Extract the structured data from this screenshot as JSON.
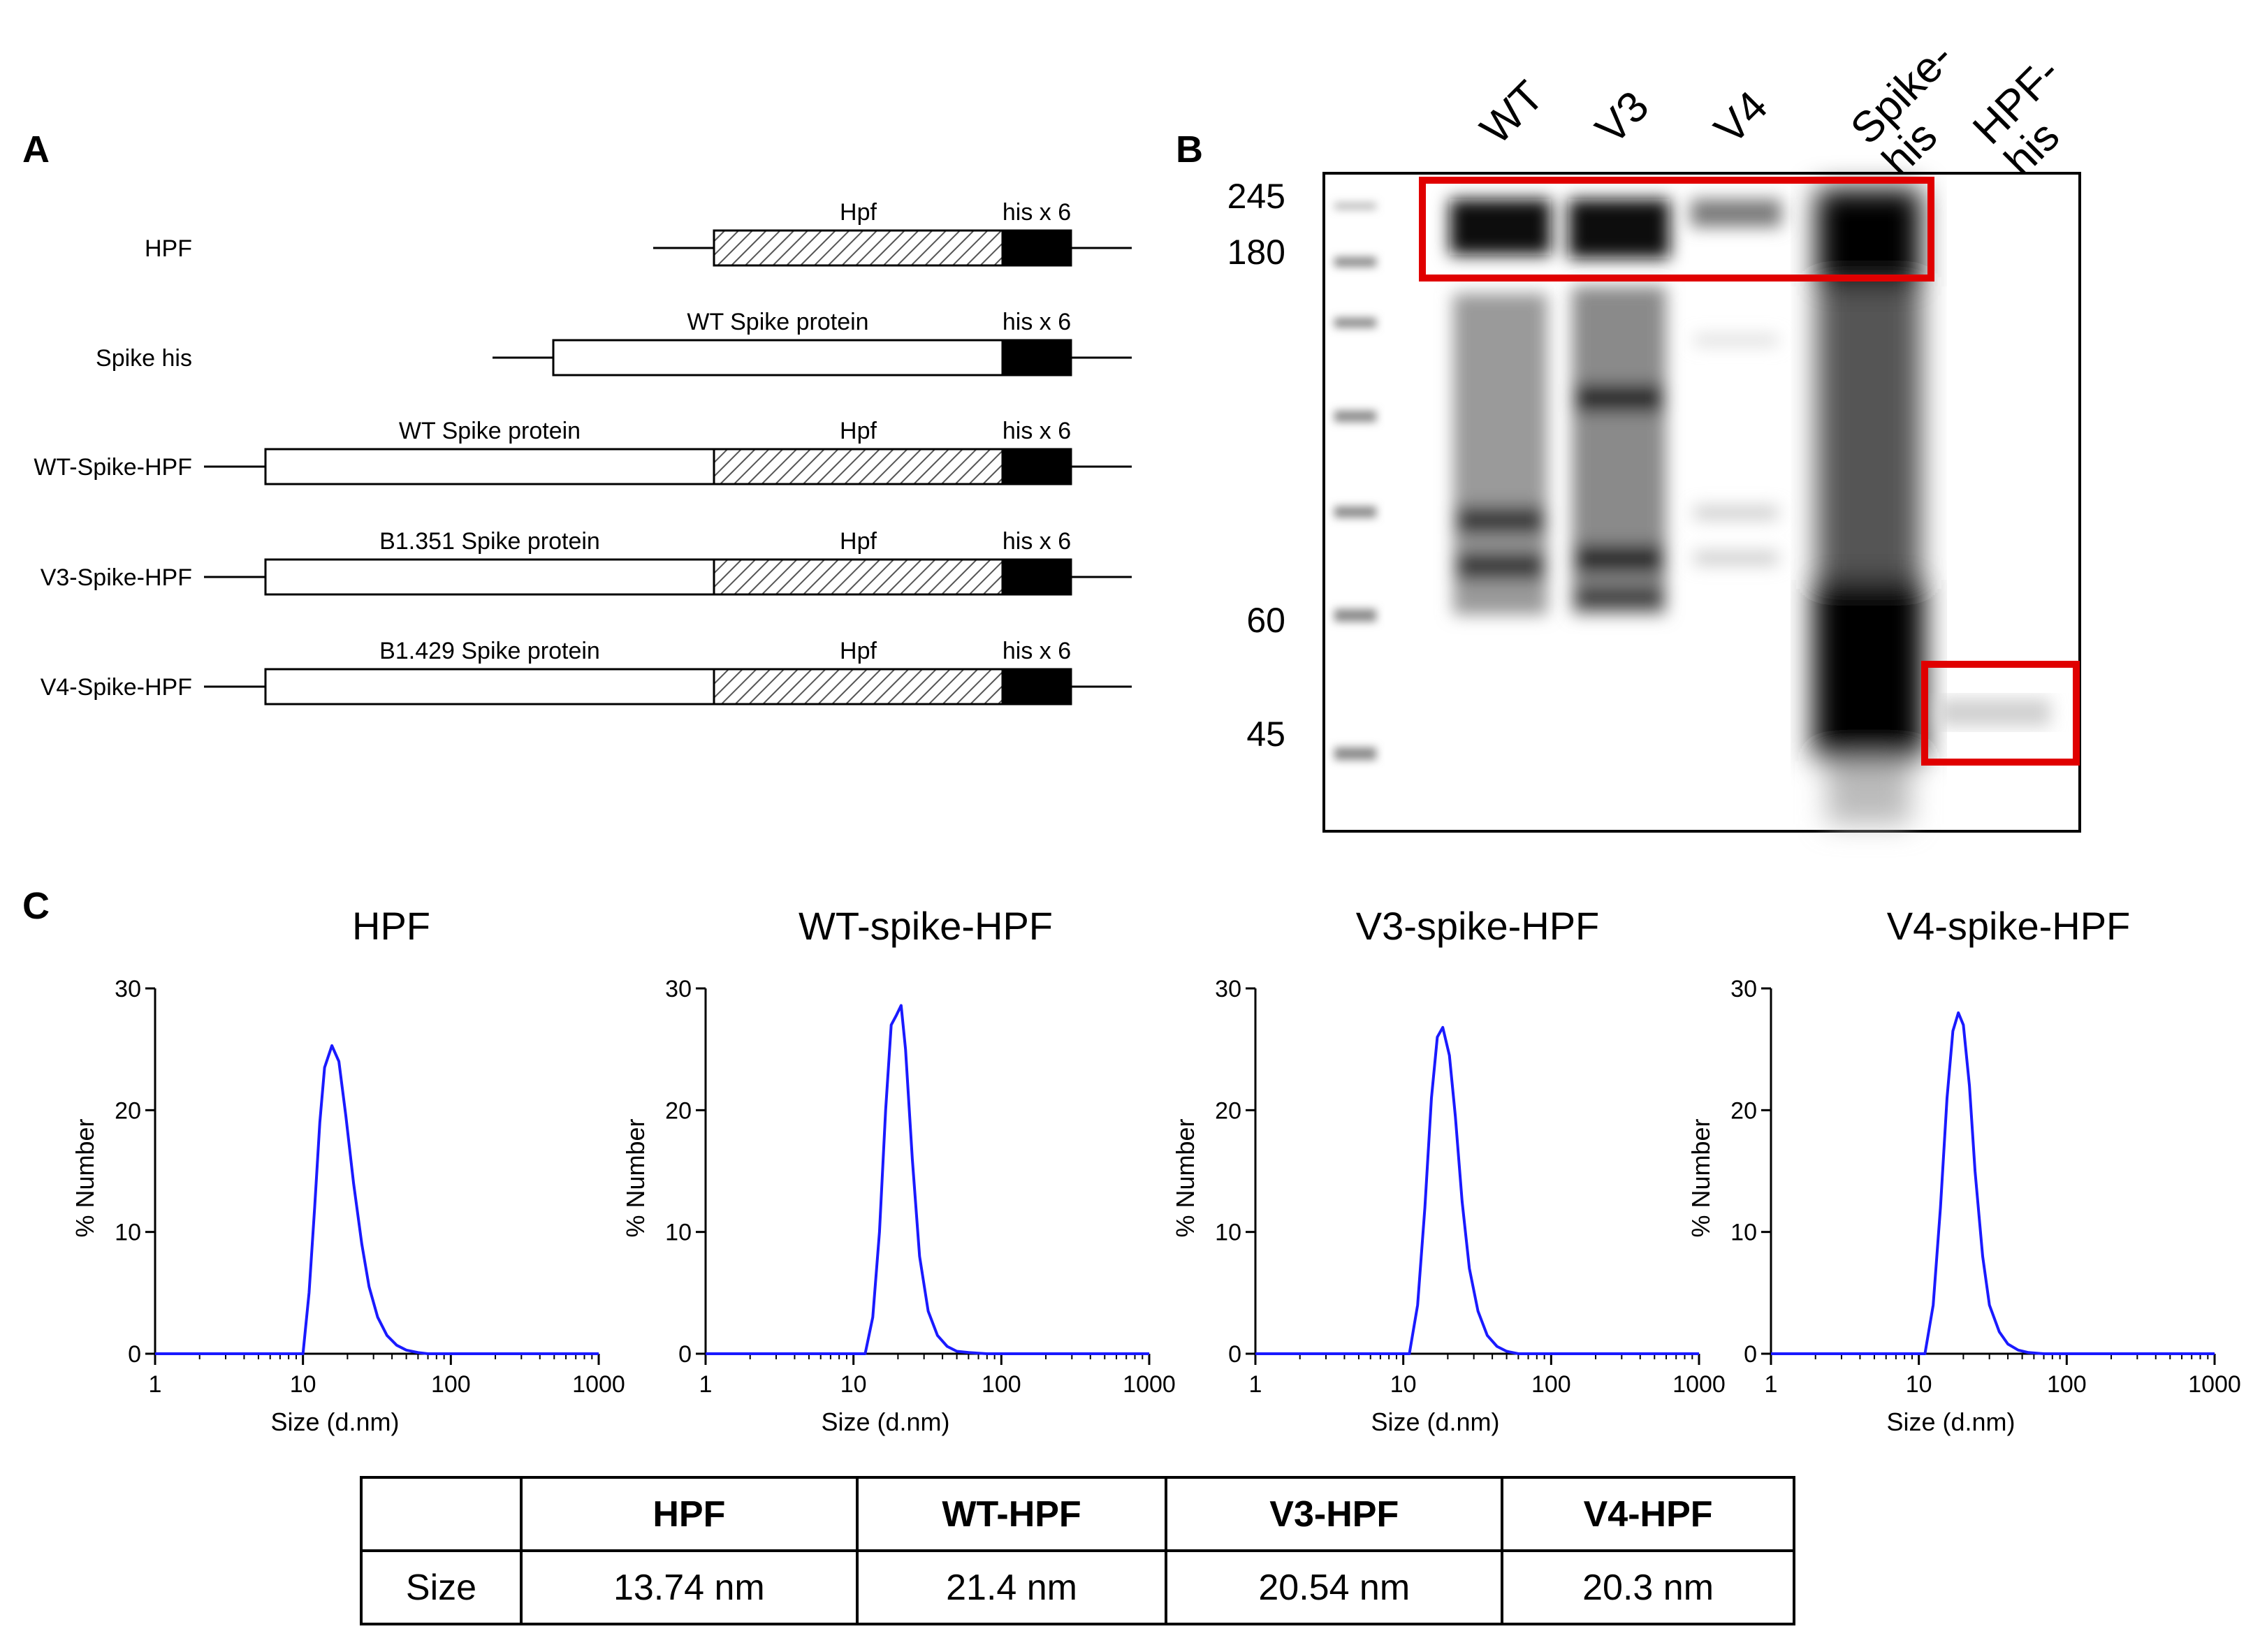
{
  "panels": {
    "a": "A",
    "b": "B",
    "c": "C"
  },
  "constructs": [
    {
      "name": "HPF",
      "segments": [
        {
          "kind": "hatch",
          "label": "Hpf"
        },
        {
          "kind": "black",
          "label": "his x 6"
        }
      ]
    },
    {
      "name": "Spike his",
      "segments": [
        {
          "kind": "white",
          "label": "WT Spike protein"
        },
        {
          "kind": "black",
          "label": "his x 6"
        }
      ]
    },
    {
      "name": "WT-Spike-HPF",
      "segments": [
        {
          "kind": "white",
          "label": "WT Spike protein"
        },
        {
          "kind": "hatch",
          "label": "Hpf"
        },
        {
          "kind": "black",
          "label": "his x 6"
        }
      ]
    },
    {
      "name": "V3-Spike-HPF",
      "segments": [
        {
          "kind": "white",
          "label": "B1.351 Spike protein"
        },
        {
          "kind": "hatch",
          "label": "Hpf"
        },
        {
          "kind": "black",
          "label": "his x 6"
        }
      ]
    },
    {
      "name": "V4-Spike-HPF",
      "segments": [
        {
          "kind": "white",
          "label": "B1.429 Spike protein"
        },
        {
          "kind": "hatch",
          "label": "Hpf"
        },
        {
          "kind": "black",
          "label": "his x 6"
        }
      ]
    }
  ],
  "blot": {
    "lanes": [
      "WT",
      "V3",
      "V4",
      "Spike-\nhis",
      "HPF-\nhis"
    ],
    "lane_lines": [
      [
        "WT"
      ],
      [
        "V3"
      ],
      [
        "V4"
      ],
      [
        "Spike-",
        "his"
      ],
      [
        "HPF-",
        "his"
      ]
    ],
    "markers": [
      "245",
      "180",
      "60",
      "45"
    ],
    "highlight_color": "#e00000"
  },
  "chart_data": [
    {
      "type": "line",
      "title": "HPF",
      "xlabel": "Size (d.nm)",
      "ylabel": "% Number",
      "x_scale": "log",
      "xlim": [
        1,
        1000
      ],
      "ylim": [
        0,
        30
      ],
      "xticks": [
        "1",
        "10",
        "100",
        "1000"
      ],
      "yticks": [
        "0",
        "10",
        "20",
        "30"
      ],
      "color": "#1a1aff",
      "x": [
        1,
        10,
        11,
        12,
        13,
        14,
        15.7,
        17.5,
        19.5,
        22,
        25,
        28,
        32,
        37,
        43,
        50,
        60,
        70,
        1000
      ],
      "y": [
        0,
        0,
        5,
        12,
        19,
        23.5,
        25.3,
        24,
        19.5,
        14,
        9,
        5.5,
        3,
        1.5,
        0.7,
        0.3,
        0.1,
        0,
        0
      ]
    },
    {
      "type": "line",
      "title": "WT-spike-HPF",
      "xlabel": "Size (d.nm)",
      "ylabel": "% Number",
      "x_scale": "log",
      "xlim": [
        1,
        1000
      ],
      "ylim": [
        0,
        30
      ],
      "xticks": [
        "1",
        "10",
        "100",
        "1000"
      ],
      "yticks": [
        "0",
        "10",
        "20",
        "30"
      ],
      "color": "#1a1aff",
      "x": [
        1,
        12,
        13.5,
        15,
        16.5,
        18,
        19.5,
        21,
        22.5,
        25,
        28,
        32,
        37,
        43,
        50,
        60,
        80,
        1000
      ],
      "y": [
        0,
        0,
        3,
        10,
        20,
        27,
        27.8,
        28.6,
        25,
        16,
        8,
        3.5,
        1.5,
        0.6,
        0.2,
        0.1,
        0,
        0
      ]
    },
    {
      "type": "line",
      "title": "V3-spike-HPF",
      "xlabel": "Size (d.nm)",
      "ylabel": "% Number",
      "x_scale": "log",
      "xlim": [
        1,
        1000
      ],
      "ylim": [
        0,
        30
      ],
      "xticks": [
        "1",
        "10",
        "100",
        "1000"
      ],
      "yticks": [
        "0",
        "10",
        "20",
        "30"
      ],
      "color": "#1a1aff",
      "x": [
        1,
        11,
        12.5,
        14,
        15.5,
        17,
        18.5,
        20.5,
        22.5,
        25,
        28,
        32,
        37,
        43,
        50,
        60,
        1000
      ],
      "y": [
        0,
        0,
        4,
        12,
        21,
        26,
        26.8,
        24.5,
        19.5,
        12.5,
        7,
        3.5,
        1.5,
        0.6,
        0.2,
        0,
        0
      ]
    },
    {
      "type": "line",
      "title": "V4-spike-HPF",
      "xlabel": "Size (d.nm)",
      "ylabel": "% Number",
      "x_scale": "log",
      "xlim": [
        1,
        1000
      ],
      "ylim": [
        0,
        30
      ],
      "xticks": [
        "1",
        "10",
        "100",
        "1000"
      ],
      "yticks": [
        "0",
        "10",
        "20",
        "30"
      ],
      "color": "#1a1aff",
      "x": [
        1,
        11,
        12.5,
        14,
        15.5,
        17,
        18.5,
        20,
        22,
        24,
        27,
        30,
        35,
        40,
        47,
        55,
        70,
        1000
      ],
      "y": [
        0,
        0,
        4,
        12,
        21,
        26.5,
        28,
        27,
        22,
        15,
        8,
        4,
        1.8,
        0.8,
        0.3,
        0.1,
        0,
        0
      ]
    }
  ],
  "size_table": {
    "headers": [
      "",
      "HPF",
      "WT-HPF",
      "V3-HPF",
      "V4-HPF"
    ],
    "row_label": "Size",
    "values": [
      "13.74 nm",
      "21.4 nm",
      "20.54 nm",
      "20.3 nm"
    ]
  }
}
